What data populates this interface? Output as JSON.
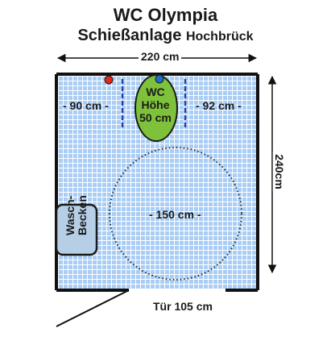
{
  "title": {
    "line1": "WC Olympia",
    "line2_main": "Schießanlage",
    "line2_small": "Hochbrück"
  },
  "dimensions": {
    "width": "220 cm",
    "height": "240cm",
    "left_clearance": "- 90 cm -",
    "right_clearance": "- 92 cm -",
    "turning_circle": "- 150 cm -",
    "door": "Tür 105 cm"
  },
  "toilet": {
    "line1": "WC",
    "line2": "Höhe",
    "line3": "50 cm"
  },
  "sink": {
    "line1": "Wasch-",
    "line2": "Becken"
  },
  "colors": {
    "floor_tile": "#a9cdf4",
    "grout": "#ffffff",
    "wall": "#111111",
    "toilet_fill": "#7ec13a",
    "sink_fill": "#b6cfe6",
    "flush_red": "#e2271c",
    "flush_blue": "#1e6fc8",
    "grab_bar": "#1f3fa6"
  }
}
